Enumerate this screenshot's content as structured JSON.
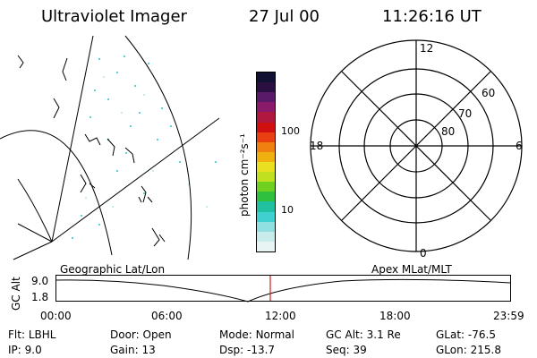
{
  "header": {
    "instrument": "Ultraviolet Imager",
    "date": "27 Jul 00",
    "time": "11:26:16 UT"
  },
  "colorbar": {
    "unit_label": "photon cm⁻²s⁻¹",
    "ticks": [
      "100",
      "10"
    ],
    "colors": [
      "#111133",
      "#2a1040",
      "#5a1a6a",
      "#8a1a6a",
      "#b01840",
      "#d01010",
      "#e84010",
      "#f08010",
      "#f0b010",
      "#e8e020",
      "#c0e020",
      "#70d020",
      "#30c040",
      "#20c0a0",
      "#40d0d0",
      "#90e0e0",
      "#c8ecec",
      "#e8f4f4"
    ]
  },
  "polar": {
    "mlt_labels": {
      "top": "12",
      "left": "18",
      "right": "6",
      "bottom": "0"
    },
    "lat_labels": [
      "60",
      "70",
      "80"
    ]
  },
  "timeline": {
    "left_title": "Geographic Lat/Lon",
    "right_title": "Apex MLat/MLT",
    "axis_label": "GC Alt",
    "y_ticks": [
      "9.0",
      "1.8"
    ],
    "x_ticks": [
      "00:00",
      "06:00",
      "12:00",
      "18:00",
      "23:59"
    ],
    "marker_color": "#cc2222"
  },
  "info": {
    "row1": [
      {
        "key": "Flt:",
        "val": "LBHL"
      },
      {
        "key": "Door:",
        "val": "Open"
      },
      {
        "key": "Mode:",
        "val": "Normal"
      },
      {
        "key": "GC Alt:",
        "val": "3.1 Re"
      },
      {
        "key": "GLat:",
        "val": "-76.5"
      }
    ],
    "row2": [
      {
        "key": "IP:",
        "val": "9.0"
      },
      {
        "key": "Gain:",
        "val": "13"
      },
      {
        "key": "Dsp:",
        "val": "-13.7"
      },
      {
        "key": "Seq:",
        "val": "39"
      },
      {
        "key": "GLon:",
        "val": "215.8"
      }
    ]
  }
}
